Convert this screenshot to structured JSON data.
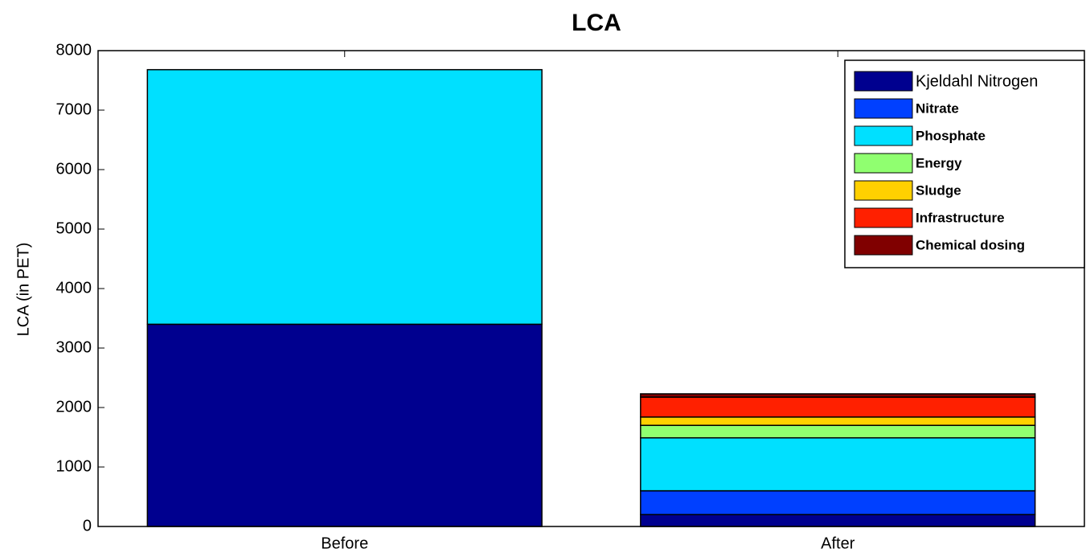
{
  "chart_data": {
    "type": "stacked_bar",
    "title": "LCA",
    "y_label": "LCA (in PET)",
    "categories": [
      "Before",
      "After"
    ],
    "series": [
      {
        "name": "Kjeldahl Nitrogen",
        "color": "#00008f",
        "values": [
          3400,
          200
        ]
      },
      {
        "name": "Nitrate",
        "color": "#0040ff",
        "values": [
          0,
          400
        ]
      },
      {
        "name": "Phosphate",
        "color": "#00e0ff",
        "values": [
          4280,
          890
        ]
      },
      {
        "name": "Energy",
        "color": "#90ff70",
        "values": [
          0,
          210
        ]
      },
      {
        "name": "Sludge",
        "color": "#ffd000",
        "values": [
          0,
          140
        ]
      },
      {
        "name": "Infrastructure",
        "color": "#ff2000",
        "values": [
          0,
          335
        ]
      },
      {
        "name": "Chemical dosing",
        "color": "#800000",
        "values": [
          0,
          55
        ]
      }
    ],
    "ylim": [
      0,
      8000
    ],
    "yticks": [
      0,
      1000,
      2000,
      3000,
      4000,
      5000,
      6000,
      7000,
      8000
    ],
    "grid": false,
    "legend": "upper right"
  }
}
